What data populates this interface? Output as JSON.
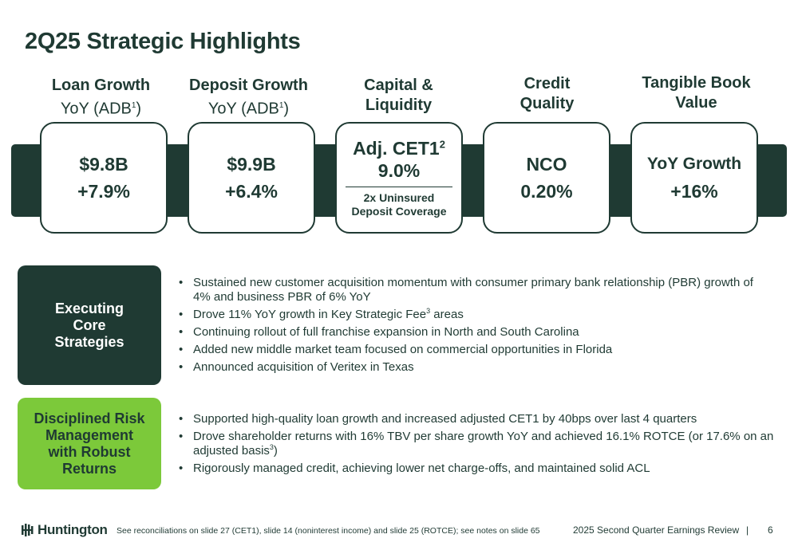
{
  "title": "2Q25 Strategic Highlights",
  "metrics": {
    "loan": {
      "head": "Loan Growth",
      "sub": "YoY (ADB",
      "sub_sup": "1",
      "sub_end": ")",
      "value": "$9.8B",
      "change": "+7.9%"
    },
    "deposit": {
      "head": "Deposit Growth",
      "sub": "YoY (ADB",
      "sub_sup": "1",
      "sub_end": ")",
      "value": "$9.9B",
      "change": "+6.4%"
    },
    "capital": {
      "head1": "Capital &",
      "head2": "Liquidity",
      "label": "Adj. CET1",
      "label_sup": "2",
      "value": "9.0%",
      "note1": "2x Uninsured",
      "note2": "Deposit Coverage"
    },
    "credit": {
      "head1": "Credit",
      "head2": "Quality",
      "label": "NCO",
      "value": "0.20%"
    },
    "tbv": {
      "head1": "Tangible Book",
      "head2": "Value",
      "label": "YoY Growth",
      "value": "+16%"
    }
  },
  "sections": {
    "core": {
      "label1": "Executing",
      "label2": "Core",
      "label3": "Strategies",
      "b1": "Sustained new customer acquisition momentum with consumer primary bank relationship (PBR) growth of 4% and business PBR of 6% YoY",
      "b2_pre": "Drove 11% YoY growth in Key Strategic Fee",
      "b2_sup": "3",
      "b2_post": " areas",
      "b3": "Continuing rollout of full franchise expansion in North and South Carolina",
      "b4": "Added new middle market team focused on commercial opportunities in Florida",
      "b5": "Announced acquisition of Veritex in Texas"
    },
    "risk": {
      "label1": "Disciplined Risk",
      "label2": "Management",
      "label3": "with Robust",
      "label4": "Returns",
      "b1": "Supported high-quality loan growth and increased adjusted CET1 by 40bps over last 4 quarters",
      "b2_pre": "Drove shareholder returns with 16% TBV per share growth YoY and achieved 16.1% ROTCE (or 17.6% on an adjusted basis",
      "b2_sup": "3",
      "b2_post": ")",
      "b3": "Rigorously managed credit, achieving lower net charge-offs, and maintained solid ACL"
    }
  },
  "bullet_char": "•",
  "footer": {
    "logo": "Huntington",
    "note": "See reconciliations on slide 27 (CET1), slide 14 (noninterest income) and slide 25 (ROTCE); see notes on slide 65",
    "report": "2025 Second Quarter Earnings Review",
    "separator": "|",
    "page": "6"
  },
  "colors": {
    "dark_green": "#1f3a33",
    "lime": "#7cc93a",
    "white": "#ffffff"
  }
}
